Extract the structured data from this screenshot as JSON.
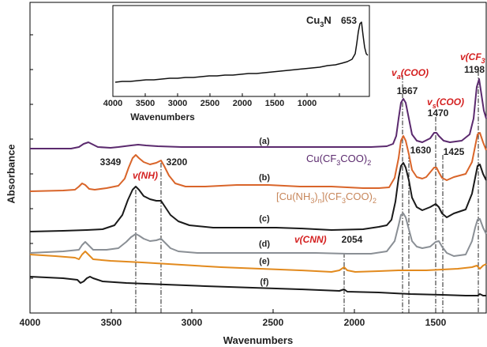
{
  "chart_data": {
    "type": "line",
    "xlabel": "Wavenumbers",
    "ylabel": "Absorbance",
    "xlim": [
      4000,
      1200
    ],
    "x_ticks": [
      "4000",
      "3500",
      "3000",
      "2500",
      "2000",
      "1500"
    ],
    "series": [
      {
        "name": "(a)",
        "color": "#5b2a6e"
      },
      {
        "name": "(b)",
        "color": "#d9652a"
      },
      {
        "name": "(c)",
        "color": "#1a1a1a"
      },
      {
        "name": "(d)",
        "color": "#8a8f95"
      },
      {
        "name": "(e)",
        "color": "#e28a1e"
      },
      {
        "name": "(f)",
        "color": "#1a1a1a"
      }
    ],
    "compound_labels": {
      "a": {
        "prefix": "Cu(CF",
        "sub1": "3",
        "mid": "COO)",
        "sub2": "2"
      },
      "b": {
        "prefix": "[Cu(NH",
        "sub1": "3",
        "mid1": ")",
        "sub2": "n",
        "mid2": "](CF",
        "sub3": "3",
        "mid3": "COO)",
        "sub4": "2"
      }
    },
    "peak_numbers": [
      "1667",
      "1470",
      "1198",
      "1630",
      "1425",
      "3349",
      "3200",
      "2054"
    ],
    "assignments": {
      "va_main": "v",
      "va_sub": "a",
      "va_rest": "(COO)",
      "vs_main": "v",
      "vs_sub": "s",
      "vs_rest": "(COO)",
      "vcf3": "v(CF",
      "vcf3_sub": "3",
      "vnh": "v(NH)",
      "vcnn": "v(CNN)"
    },
    "inset": {
      "title_main": "Cu",
      "title_sub": "3",
      "title_end": "N",
      "peak": "653",
      "xlabel": "Wavenumbers",
      "x_ticks": [
        "4000",
        "3500",
        "3000",
        "2500",
        "2000",
        "1500",
        "1000"
      ]
    }
  }
}
